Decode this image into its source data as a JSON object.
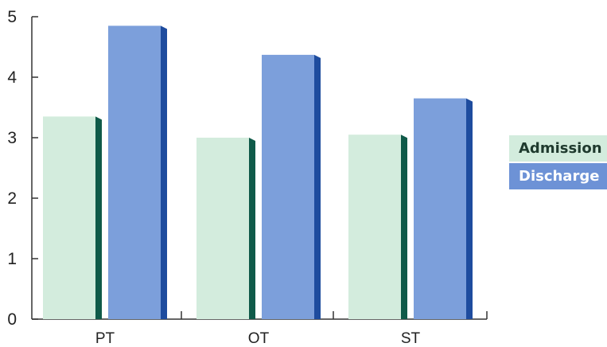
{
  "chart_data": {
    "type": "bar",
    "categories": [
      "PT",
      "OT",
      "ST"
    ],
    "series": [
      {
        "name": "Admission",
        "values": [
          3.35,
          3.0,
          3.05
        ]
      },
      {
        "name": "Discharge",
        "values": [
          4.85,
          4.37,
          3.65
        ]
      }
    ],
    "ylim": [
      0,
      5
    ],
    "yticks": [
      "0",
      "1",
      "2",
      "3",
      "4",
      "5"
    ],
    "grid": false,
    "legend_position": "right"
  },
  "colors": {
    "admission_face": "#d3ecdd",
    "admission_side": "#0f5a49",
    "admission_legend": "#d3ecdd",
    "discharge_face": "#7c9fdb",
    "discharge_side": "#1e4c9e",
    "discharge_legend": "#6d92d6",
    "axis": "#333333"
  }
}
